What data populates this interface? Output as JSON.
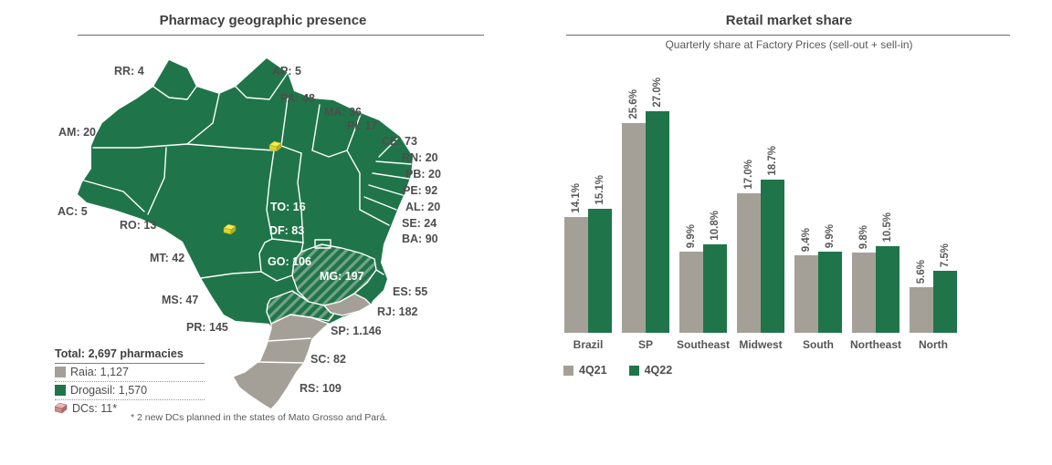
{
  "left_panel": {
    "title": "Pharmacy geographic presence",
    "states": [
      {
        "code": "RR",
        "count": "4"
      },
      {
        "code": "AP",
        "count": "5"
      },
      {
        "code": "PA",
        "count": "48"
      },
      {
        "code": "MA",
        "count": "36"
      },
      {
        "code": "PI",
        "count": "17"
      },
      {
        "code": "CE",
        "count": "73"
      },
      {
        "code": "RN",
        "count": "20"
      },
      {
        "code": "PB",
        "count": "20"
      },
      {
        "code": "PE",
        "count": "92"
      },
      {
        "code": "AL",
        "count": "20"
      },
      {
        "code": "SE",
        "count": "24"
      },
      {
        "code": "BA",
        "count": "90"
      },
      {
        "code": "AM",
        "count": "20"
      },
      {
        "code": "AC",
        "count": "5"
      },
      {
        "code": "RO",
        "count": "13"
      },
      {
        "code": "MT",
        "count": "42"
      },
      {
        "code": "MS",
        "count": "47"
      },
      {
        "code": "PR",
        "count": "145"
      },
      {
        "code": "ES",
        "count": "55"
      },
      {
        "code": "RJ",
        "count": "182"
      },
      {
        "code": "SP",
        "count": "1.146"
      },
      {
        "code": "SC",
        "count": "82"
      },
      {
        "code": "RS",
        "count": "109"
      },
      {
        "code": "TO",
        "count": "16"
      },
      {
        "code": "DF",
        "count": "83"
      },
      {
        "code": "GO",
        "count": "106"
      },
      {
        "code": "MG",
        "count": "197"
      }
    ],
    "legend": {
      "total_label": "Total: 2,697 pharmacies",
      "raia_label": "Raia: 1,127",
      "drogasil_label": "Drogasil: 1,570",
      "dcs_label": "DCs: 11*"
    },
    "footnote": "* 2 new DCs planned in the states of Mato Grosso and Pará."
  },
  "right_panel": {
    "title": "Retail market share",
    "subtitle": "Quarterly share at Factory Prices (sell-out + sell-in)"
  },
  "chart_data": {
    "type": "bar",
    "title": "Retail market share",
    "subtitle": "Quarterly share at Factory Prices (sell-out + sell-in)",
    "categories": [
      "Brazil",
      "SP",
      "Southeast",
      "Midwest",
      "South",
      "Northeast",
      "North"
    ],
    "series": [
      {
        "name": "4Q21",
        "color": "#A5A097",
        "values": [
          14.1,
          25.6,
          9.9,
          17.0,
          9.4,
          9.8,
          5.6
        ]
      },
      {
        "name": "4Q22",
        "color": "#1F7549",
        "values": [
          15.1,
          27.0,
          10.8,
          18.7,
          9.9,
          10.5,
          7.5
        ]
      }
    ],
    "value_suffix": "%",
    "value_labels_rotated": true,
    "ylim": [
      0,
      30
    ],
    "grid": false,
    "legend_position": "bottom"
  },
  "colors": {
    "drogasil_green": "#1F7549",
    "raia_gray": "#A5A097",
    "hatch_light_green": "#75A188",
    "dc_planned_yellow": "#E3DE3A",
    "dc_legend_pink": "#CD8B8B",
    "text_dark": "#3F3F3F",
    "text_gray": "#595959"
  }
}
